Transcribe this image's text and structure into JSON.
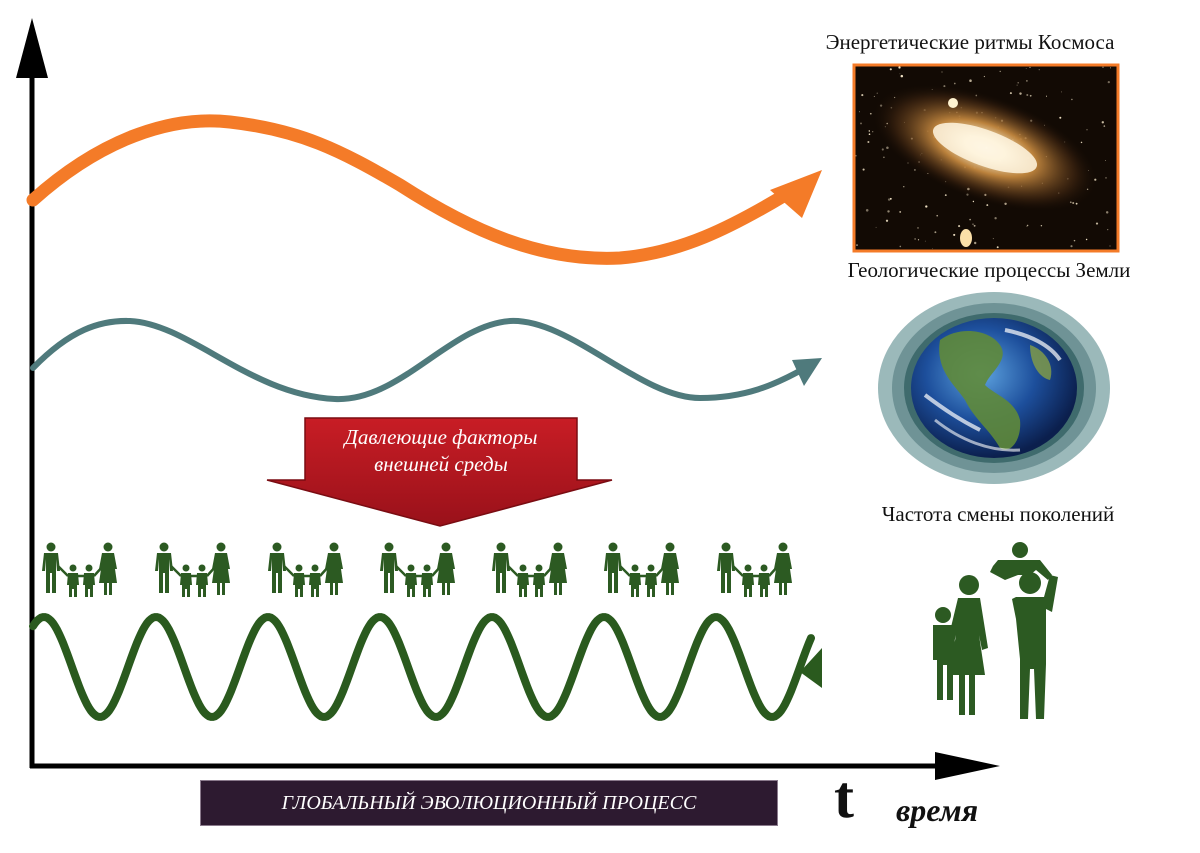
{
  "labels": {
    "cosmos": "Энергетические ритмы Космоса",
    "earth": "Геологические процессы Земли",
    "generations": "Частота смены поколений",
    "pressure_line1": "Давлеющие факторы",
    "pressure_line2": "внешней среды",
    "global_process": "ГЛОБАЛЬНЫЙ ЭВОЛЮЦИОННЫЙ ПРОЦЕСС",
    "t": "t",
    "time": "время"
  },
  "icons": {
    "galaxy": "galaxy-photo-icon",
    "earth": "earth-globe-icon",
    "family": "family-silhouette-icon",
    "parent_child": "parent-lifting-child-icon"
  },
  "colors": {
    "cosmos_wave": "#f47b28",
    "earth_wave": "#4f7a7c",
    "generation_wave": "#2a5a1e",
    "family_icons": "#2c5a22",
    "pressure_arrow": "#b5121b",
    "global_box": "#2d1a30",
    "axes": "#000000"
  }
}
